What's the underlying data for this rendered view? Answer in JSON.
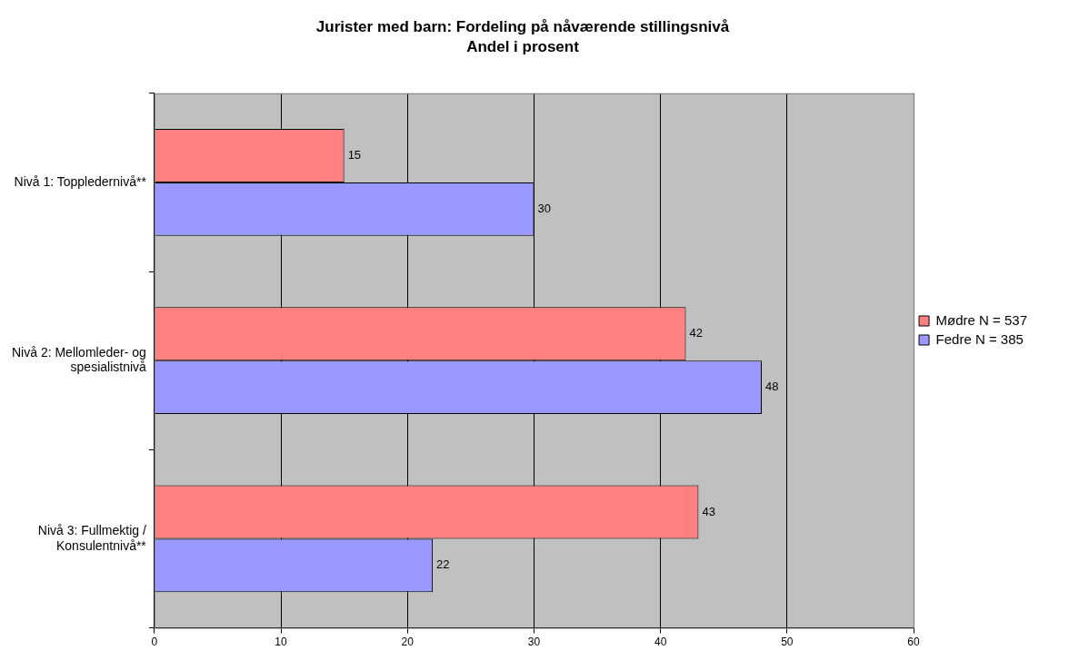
{
  "chart_data": {
    "type": "bar",
    "orientation": "horizontal",
    "title": "Jurister med barn: Fordeling på nåværende stillingsnivå",
    "subtitle": "Andel i prosent",
    "categories": [
      "Nivå 1: Toppledernivå**",
      "Nivå 2: Mellomleder- og spesialistnivå",
      "Nivå 3: Fullmektig / Konsulentnivå**"
    ],
    "series": [
      {
        "name": "Mødre N = 537",
        "color": "#ff8080",
        "values": [
          15,
          42,
          43
        ]
      },
      {
        "name": "Fedre N = 385",
        "color": "#9999ff",
        "values": [
          30,
          48,
          22
        ]
      }
    ],
    "xlim": [
      0,
      60
    ],
    "xticks": [
      0,
      10,
      20,
      30,
      40,
      50,
      60
    ],
    "grid": "x",
    "legend": "right",
    "data_labels": true
  }
}
